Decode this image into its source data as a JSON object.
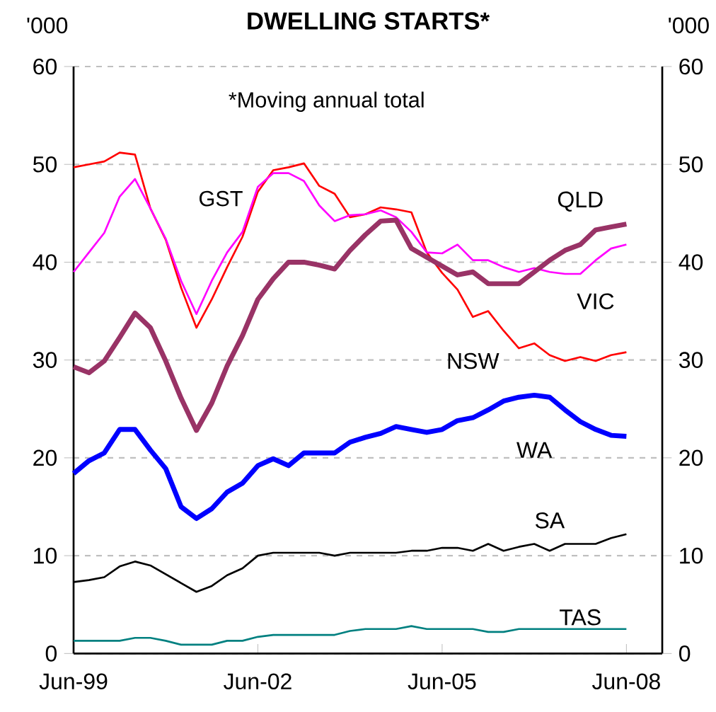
{
  "chart_data": {
    "type": "line",
    "title": "DWELLING STARTS*",
    "ylabel": "'000",
    "y2label": "'000",
    "annotations": [
      "*Moving annual total",
      "GST"
    ],
    "x": [
      "1999-06",
      "1999-09",
      "1999-12",
      "2000-03",
      "2000-06",
      "2000-09",
      "2000-12",
      "2001-03",
      "2001-06",
      "2001-09",
      "2001-12",
      "2002-03",
      "2002-06",
      "2002-09",
      "2002-12",
      "2003-03",
      "2003-06",
      "2003-09",
      "2003-12",
      "2004-03",
      "2004-06",
      "2004-09",
      "2004-12",
      "2005-03",
      "2005-06",
      "2005-09",
      "2005-12",
      "2006-03",
      "2006-06",
      "2006-09",
      "2006-12",
      "2007-03",
      "2007-06",
      "2007-09",
      "2007-12",
      "2008-03",
      "2008-06"
    ],
    "series": [
      {
        "name": "NSW",
        "color": "#ff0000",
        "values": [
          49.7,
          50,
          50.3,
          51.2,
          51,
          45.5,
          42.3,
          37.4,
          33.3,
          36.2,
          39.5,
          42.6,
          47.2,
          49.4,
          49.7,
          50.1,
          47.8,
          47,
          44.6,
          44.9,
          45.6,
          45.4,
          45.1,
          41,
          38.9,
          37.2,
          34.4,
          35,
          33,
          31.2,
          31.7,
          30.5,
          29.9,
          30.3,
          29.9,
          30.5,
          30.8
        ]
      },
      {
        "name": "VIC",
        "color": "#ff00ff",
        "values": [
          39,
          41,
          43,
          46.7,
          48.5,
          45.5,
          42.4,
          38.1,
          34.7,
          38.1,
          41,
          43.1,
          47.7,
          49.1,
          49.1,
          48.3,
          45.8,
          44.2,
          44.8,
          44.9,
          45.3,
          44.6,
          43.1,
          41,
          40.9,
          41.8,
          40.2,
          40.2,
          39.5,
          39,
          39.4,
          39,
          38.8,
          38.8,
          40.2,
          41.4,
          41.8
        ]
      },
      {
        "name": "QLD",
        "color": "#993366",
        "values": [
          29.3,
          28.7,
          29.9,
          32.3,
          34.8,
          33.3,
          29.9,
          26.1,
          22.8,
          25.6,
          29.4,
          32.5,
          36.2,
          38.3,
          40,
          40,
          39.7,
          39.3,
          41.2,
          42.8,
          44.2,
          44.3,
          41.4,
          40.5,
          39.6,
          38.7,
          39,
          37.8,
          37.8,
          37.8,
          39,
          40.2,
          41.2,
          41.8,
          43.3,
          43.6,
          43.9
        ]
      },
      {
        "name": "WA",
        "color": "#0000ff",
        "values": [
          18.4,
          19.7,
          20.5,
          22.9,
          22.9,
          20.8,
          18.9,
          15,
          13.8,
          14.8,
          16.5,
          17.4,
          19.2,
          19.9,
          19.2,
          20.5,
          20.5,
          20.5,
          21.6,
          22.1,
          22.5,
          23.2,
          22.9,
          22.6,
          22.9,
          23.8,
          24.1,
          24.9,
          25.8,
          26.2,
          26.4,
          26.2,
          24.9,
          23.7,
          22.9,
          22.3,
          22.2
        ]
      },
      {
        "name": "SA",
        "color": "#000000",
        "values": [
          7.3,
          7.5,
          7.8,
          8.9,
          9.4,
          9,
          8.1,
          7.2,
          6.3,
          6.9,
          8,
          8.7,
          10,
          10.3,
          10.3,
          10.3,
          10.3,
          10,
          10.3,
          10.3,
          10.3,
          10.3,
          10.5,
          10.5,
          10.8,
          10.8,
          10.5,
          11.2,
          10.5,
          10.9,
          11.2,
          10.5,
          11.2,
          11.2,
          11.2,
          11.8,
          12.2
        ]
      },
      {
        "name": "TAS",
        "color": "#008080",
        "values": [
          1.3,
          1.3,
          1.3,
          1.3,
          1.6,
          1.6,
          1.3,
          0.9,
          0.9,
          0.9,
          1.3,
          1.3,
          1.7,
          1.9,
          1.9,
          1.9,
          1.9,
          1.9,
          2.3,
          2.5,
          2.5,
          2.5,
          2.8,
          2.5,
          2.5,
          2.5,
          2.5,
          2.2,
          2.2,
          2.5,
          2.5,
          2.5,
          2.5,
          2.5,
          2.5,
          2.5,
          2.5
        ]
      }
    ],
    "xlim": [
      "1999-06",
      "2009-01"
    ],
    "xticks": [
      {
        "value": "1999-06",
        "label": "Jun-99"
      },
      {
        "value": "2002-06",
        "label": "Jun-02"
      },
      {
        "value": "2005-06",
        "label": "Jun-05"
      },
      {
        "value": "2008-06",
        "label": "Jun-08"
      }
    ],
    "ylim": [
      0,
      60
    ],
    "yticks": [
      0,
      10,
      20,
      30,
      40,
      50,
      60
    ],
    "y2lim": [
      0,
      60
    ],
    "y2ticks": [
      0,
      10,
      20,
      30,
      40,
      50,
      60
    ],
    "grid": "y",
    "legend": false,
    "marker": "none",
    "line_style": "solid"
  }
}
